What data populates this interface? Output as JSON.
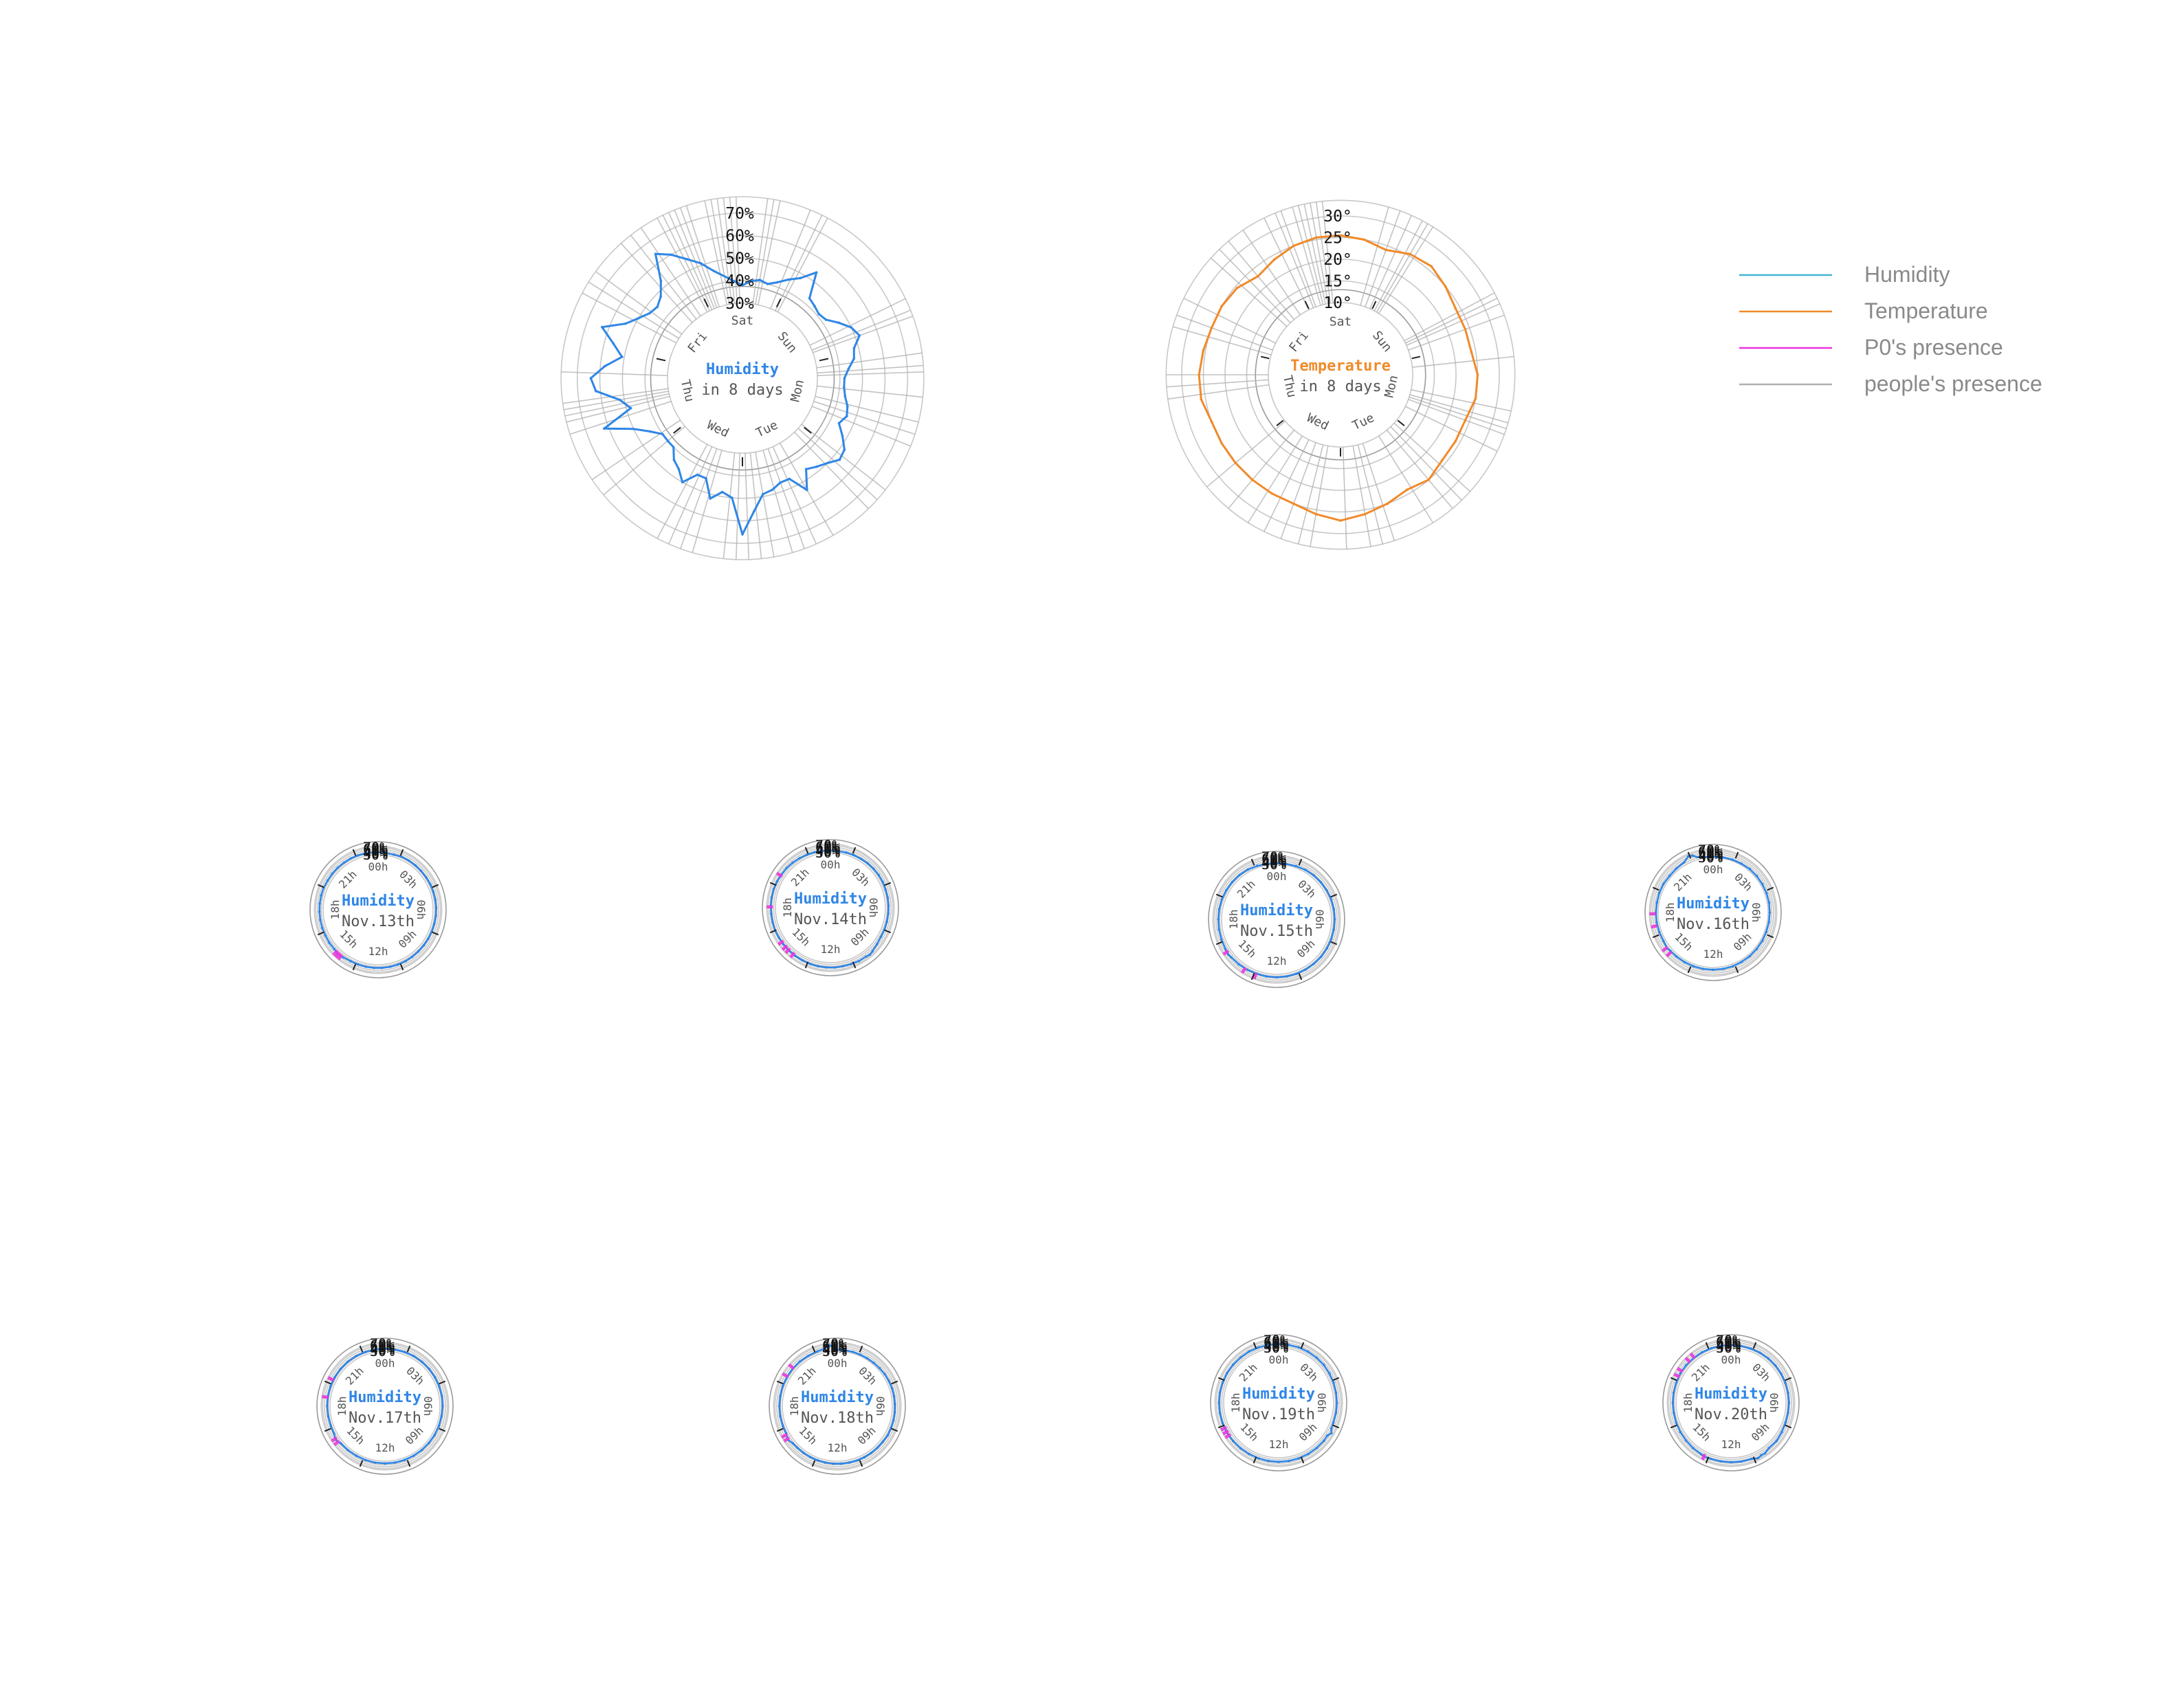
{
  "colors": {
    "humidity": "#2f86e6",
    "temperature": "#f08a2a",
    "p0_presence": "#ee33dd",
    "people_presence": "#b0b0b0",
    "ring": "#c8c8c8"
  },
  "legend": [
    {
      "label": "Humidity",
      "color": "#41b6d6"
    },
    {
      "label": "Temperature",
      "color": "#f08a2a"
    },
    {
      "label": "P0's presence",
      "color": "#ee33dd"
    },
    {
      "label": "people's presence",
      "color": "#b0b0b0"
    }
  ],
  "chart_data": [
    {
      "type": "radial-line",
      "series_color": "humidity",
      "center_title": "Humidity",
      "center_subtitle": "in 8 days",
      "ticks": [
        "30%",
        "40%",
        "50%",
        "60%",
        "70%"
      ],
      "rlim": [
        30,
        70
      ],
      "angle_labels": [
        "Sat",
        "Sun",
        "Mon",
        "Tue",
        "Wed",
        "Thu",
        "Fri"
      ],
      "theta": [
        0,
        5,
        10,
        15,
        20,
        25,
        30,
        35,
        40,
        45,
        50,
        55,
        60,
        65,
        70,
        75,
        80,
        85,
        90,
        95,
        100,
        105,
        110,
        115,
        120,
        125,
        130,
        135,
        140,
        145,
        150,
        155,
        160,
        165,
        170,
        175,
        180,
        185,
        190,
        195,
        200,
        205,
        210,
        215,
        220,
        225,
        230,
        235,
        240,
        245,
        250,
        255,
        260,
        265,
        270,
        275,
        280,
        285,
        290,
        295,
        300,
        305,
        310,
        315,
        320,
        325,
        330,
        335,
        340,
        345,
        355
      ],
      "values": [
        38,
        40,
        41,
        40,
        42,
        45,
        48,
        54,
        43,
        42,
        41,
        42,
        46,
        50,
        52,
        48,
        47,
        44,
        42,
        42,
        43,
        45,
        46,
        44,
        48,
        52,
        53,
        50,
        48,
        46,
        54,
        46,
        46,
        48,
        49,
        56,
        66,
        50,
        48,
        52,
        44,
        44,
        50,
        46,
        44,
        40,
        40,
        40,
        44,
        50,
        62,
        48,
        52,
        62,
        64,
        58,
        51,
        56,
        63,
        54,
        50,
        47,
        46,
        48,
        53,
        64,
        60,
        55,
        51,
        46,
        40
      ],
      "people_presence_theta": [
        -12,
        -10,
        -8,
        -6,
        -4,
        -2,
        8,
        10,
        12,
        22,
        26,
        28,
        64,
        68,
        70,
        82,
        86,
        88,
        96,
        104,
        108,
        112,
        128,
        132,
        136,
        150,
        156,
        160,
        164,
        170,
        174,
        178,
        182,
        186,
        196,
        200,
        204,
        208,
        230,
        236,
        252,
        256,
        258,
        260,
        262,
        272,
        298,
        302,
        306,
        318,
        322,
        326,
        332,
        334,
        336,
        338,
        340,
        342
      ],
      "p0_presence_theta": []
    },
    {
      "type": "radial-line",
      "series_color": "temperature",
      "center_title": "Temperature",
      "center_subtitle": "in 8 days",
      "ticks": [
        "10°",
        "15°",
        "20°",
        "25°",
        "30°"
      ],
      "rlim": [
        10,
        30
      ],
      "angle_labels": [
        "Sat",
        "Sun",
        "Mon",
        "Tue",
        "Wed",
        "Thu",
        "Fri"
      ],
      "theta": [
        0,
        10,
        20,
        30,
        40,
        50,
        60,
        70,
        80,
        90,
        100,
        110,
        120,
        130,
        140,
        150,
        160,
        170,
        180,
        190,
        200,
        210,
        220,
        230,
        240,
        250,
        260,
        270,
        280,
        290,
        300,
        310,
        320,
        330,
        340,
        350
      ],
      "values": [
        25.5,
        25,
        24,
        25.5,
        26,
        25,
        24,
        24,
        24,
        25,
        25,
        24,
        24,
        24,
        25,
        24,
        25,
        26,
        27,
        26,
        25,
        25,
        25,
        25,
        25,
        25,
        26,
        26,
        25.5,
        25,
        25,
        24.5,
        23,
        24,
        25,
        25.5
      ],
      "people_presence_theta": [
        -20,
        -16,
        -14,
        -12,
        -10,
        -8,
        -6,
        16,
        20,
        24,
        28,
        30,
        32,
        62,
        64,
        66,
        70,
        84,
        102,
        106,
        108,
        110,
        116,
        132,
        136,
        140,
        148,
        162,
        166,
        170,
        178,
        190,
        194,
        200,
        206,
        212,
        220,
        230,
        262,
        266,
        270,
        286,
        290,
        296,
        312,
        316,
        320,
        326,
        334,
        338
      ],
      "p0_presence_theta": []
    },
    {
      "type": "radial-line",
      "series_color": "humidity",
      "center_title": "Humidity",
      "center_subtitle": "Nov.13th",
      "ticks": [
        "30%",
        "40%",
        "50%",
        "60%",
        "70%"
      ],
      "rlim": [
        30,
        70
      ],
      "angle_labels": [
        "00h",
        "03h",
        "06h",
        "09h",
        "12h",
        "15h",
        "18h",
        "21h"
      ],
      "theta": [
        0,
        8,
        16,
        24,
        32,
        40,
        48,
        56,
        64,
        72,
        80,
        88,
        96,
        104,
        112,
        120,
        128,
        136,
        144,
        152,
        160,
        168,
        176,
        184,
        192,
        200,
        208,
        216,
        222,
        225,
        228,
        236,
        244,
        252,
        260,
        268,
        276,
        284,
        292,
        300,
        308,
        316,
        324,
        332,
        340,
        348,
        356
      ],
      "values": [
        43,
        42,
        42,
        46,
        46,
        46,
        46,
        46,
        47,
        47,
        47,
        47,
        47,
        46,
        46,
        46,
        46,
        46,
        47,
        48,
        48,
        48,
        48,
        48,
        48,
        48,
        48,
        51,
        58,
        52,
        51,
        51,
        50,
        50,
        50,
        50,
        50,
        50,
        50,
        48,
        48,
        48,
        47,
        47,
        46,
        45,
        43
      ],
      "people_presence_theta": [],
      "p0_presence_theta": [
        218,
        221,
        224
      ]
    },
    {
      "type": "radial-line",
      "series_color": "humidity",
      "center_title": "Humidity",
      "center_subtitle": "Nov.14th",
      "ticks": [
        "30%",
        "40%",
        "50%",
        "60%",
        "70%"
      ],
      "rlim": [
        30,
        70
      ],
      "angle_labels": [
        "00h",
        "03h",
        "06h",
        "09h",
        "12h",
        "15h",
        "18h",
        "21h"
      ],
      "theta": [
        0,
        8,
        16,
        24,
        32,
        40,
        48,
        56,
        64,
        72,
        80,
        88,
        96,
        104,
        112,
        120,
        128,
        136,
        140,
        144,
        152,
        160,
        168,
        176,
        184,
        192,
        200,
        208,
        216,
        224,
        232,
        240,
        248,
        256,
        264,
        272,
        280,
        288,
        296,
        304,
        312,
        320,
        328,
        336,
        344,
        352
      ],
      "values": [
        41,
        41,
        42,
        43,
        44,
        46,
        47,
        48,
        48,
        47,
        47,
        47,
        47,
        47,
        48,
        48,
        52,
        60,
        64,
        60,
        60,
        58,
        56,
        57,
        56,
        56,
        56,
        55,
        55,
        55,
        55,
        55,
        56,
        55,
        54,
        55,
        55,
        55,
        54,
        52,
        52,
        50,
        48,
        46,
        44,
        42
      ],
      "people_presence_theta": [],
      "p0_presence_theta": [
        218,
        224,
        228,
        234,
        270,
        302
      ]
    },
    {
      "type": "radial-line",
      "series_color": "humidity",
      "center_title": "Humidity",
      "center_subtitle": "Nov.15th",
      "ticks": [
        "30%",
        "40%",
        "50%",
        "60%",
        "70%"
      ],
      "rlim": [
        30,
        70
      ],
      "angle_labels": [
        "00h",
        "03h",
        "06h",
        "09h",
        "12h",
        "15h",
        "18h",
        "21h"
      ],
      "theta": [
        0,
        10,
        20,
        30,
        40,
        50,
        60,
        70,
        80,
        90,
        100,
        110,
        120,
        130,
        140,
        150,
        160,
        170,
        180,
        190,
        200,
        210,
        220,
        230,
        234,
        240,
        250,
        260,
        270,
        280,
        290,
        300,
        310,
        320,
        330,
        340,
        350
      ],
      "values": [
        37,
        37,
        39,
        42,
        44,
        45,
        46,
        47,
        47,
        47,
        47,
        47,
        47,
        47,
        46,
        46,
        46,
        46,
        46,
        46,
        46,
        48,
        50,
        52,
        56,
        52,
        50,
        49,
        48,
        48,
        48,
        47,
        46,
        45,
        43,
        40,
        37
      ],
      "people_presence_theta": [],
      "p0_presence_theta": [
        200,
        212,
        236
      ]
    },
    {
      "type": "radial-line",
      "series_color": "humidity",
      "center_title": "Humidity",
      "center_subtitle": "Nov.16th",
      "ticks": [
        "30%",
        "40%",
        "50%",
        "60%",
        "70%"
      ],
      "rlim": [
        30,
        70
      ],
      "angle_labels": [
        "00h",
        "03h",
        "06h",
        "09h",
        "12h",
        "15h",
        "18h",
        "21h"
      ],
      "theta": [
        0,
        10,
        20,
        30,
        40,
        50,
        60,
        70,
        80,
        90,
        100,
        110,
        120,
        130,
        140,
        150,
        160,
        170,
        180,
        190,
        200,
        210,
        220,
        228,
        232,
        240,
        250,
        260,
        270,
        280,
        290,
        300,
        310,
        320,
        330,
        336,
        340,
        344,
        350
      ],
      "values": [
        34,
        35,
        37,
        38,
        40,
        40,
        40,
        40,
        40,
        39,
        39,
        39,
        40,
        40,
        41,
        41,
        42,
        42,
        42,
        42,
        42,
        42,
        42,
        43,
        48,
        42,
        42,
        42,
        42,
        41,
        42,
        42,
        40,
        42,
        46,
        64,
        60,
        44,
        37
      ],
      "people_presence_theta": [],
      "p0_presence_theta": [
        226,
        232,
        256,
        268
      ]
    },
    {
      "type": "radial-line",
      "series_color": "humidity",
      "center_title": "Humidity",
      "center_subtitle": "Nov.17th",
      "ticks": [
        "30%",
        "40%",
        "50%",
        "60%",
        "70%"
      ],
      "rlim": [
        30,
        70
      ],
      "angle_labels": [
        "00h",
        "03h",
        "06h",
        "09h",
        "12h",
        "15h",
        "18h",
        "21h"
      ],
      "theta": [
        0,
        10,
        20,
        30,
        40,
        50,
        60,
        70,
        80,
        90,
        100,
        110,
        120,
        130,
        140,
        150,
        160,
        170,
        180,
        190,
        200,
        210,
        220,
        230,
        236,
        242,
        250,
        260,
        270,
        280,
        290,
        300,
        310,
        320,
        330,
        340,
        350
      ],
      "values": [
        43,
        43,
        44,
        45,
        45,
        45,
        45,
        45,
        45,
        44,
        43,
        43,
        43,
        42,
        42,
        42,
        42,
        42,
        42,
        42,
        42,
        42,
        43,
        45,
        56,
        45,
        44,
        44,
        45,
        46,
        46,
        46,
        46,
        46,
        45,
        44,
        43
      ],
      "people_presence_theta": [],
      "p0_presence_theta": [
        232,
        236,
        278,
        296
      ]
    },
    {
      "type": "radial-line",
      "series_color": "humidity",
      "center_title": "Humidity",
      "center_subtitle": "Nov.18th",
      "ticks": [
        "30%",
        "40%",
        "50%",
        "60%",
        "70%"
      ],
      "rlim": [
        30,
        70
      ],
      "angle_labels": [
        "00h",
        "03h",
        "06h",
        "09h",
        "12h",
        "15h",
        "18h",
        "21h"
      ],
      "theta": [
        0,
        4,
        8,
        16,
        24,
        32,
        40,
        48,
        56,
        64,
        72,
        80,
        88,
        96,
        104,
        112,
        120,
        128,
        136,
        144,
        152,
        160,
        168,
        176,
        184,
        192,
        200,
        208,
        216,
        224,
        230,
        236,
        242,
        250,
        260,
        270,
        280,
        290,
        300,
        310,
        320,
        330,
        340,
        348,
        352,
        356
      ],
      "values": [
        38,
        37,
        38,
        38,
        38,
        38,
        39,
        40,
        42,
        43,
        44,
        44,
        44,
        45,
        46,
        46,
        48,
        45,
        45,
        45,
        45,
        45,
        44,
        44,
        44,
        44,
        44,
        44,
        44,
        44,
        46,
        56,
        46,
        46,
        46,
        46,
        46,
        47,
        47,
        48,
        48,
        47,
        48,
        52,
        68,
        52
      ],
      "people_presence_theta": [],
      "p0_presence_theta": [
        236,
        240,
        300,
        310
      ]
    },
    {
      "type": "radial-line",
      "series_color": "humidity",
      "center_title": "Humidity",
      "center_subtitle": "Nov.19th",
      "ticks": [
        "30%",
        "40%",
        "50%",
        "60%",
        "70%"
      ],
      "rlim": [
        30,
        70
      ],
      "angle_labels": [
        "00h",
        "03h",
        "06h",
        "09h",
        "12h",
        "15h",
        "18h",
        "21h"
      ],
      "theta": [
        0,
        10,
        20,
        30,
        40,
        50,
        60,
        70,
        80,
        90,
        100,
        110,
        116,
        120,
        124,
        130,
        140,
        150,
        160,
        170,
        180,
        190,
        200,
        210,
        220,
        230,
        240,
        250,
        260,
        270,
        280,
        290,
        300,
        310,
        320,
        330,
        340,
        350
      ],
      "values": [
        50,
        50,
        51,
        51,
        51,
        51,
        50,
        49,
        48,
        48,
        48,
        48,
        50,
        62,
        50,
        52,
        52,
        52,
        52,
        52,
        52,
        52,
        52,
        52,
        53,
        54,
        56,
        55,
        55,
        55,
        55,
        54,
        54,
        53,
        52,
        52,
        51,
        50
      ],
      "people_presence_theta": [],
      "p0_presence_theta": [
        236,
        240,
        244
      ]
    },
    {
      "type": "radial-line",
      "series_color": "humidity",
      "center_title": "Humidity",
      "center_subtitle": "Nov.20th",
      "ticks": [
        "30%",
        "40%",
        "50%",
        "60%",
        "70%"
      ],
      "rlim": [
        30,
        70
      ],
      "angle_labels": [
        "00h",
        "03h",
        "06h",
        "09h",
        "12h",
        "15h",
        "18h",
        "21h"
      ],
      "theta": [
        0,
        10,
        20,
        30,
        40,
        50,
        60,
        70,
        80,
        90,
        100,
        110,
        120,
        130,
        140,
        146,
        150,
        154,
        160,
        170,
        180,
        190,
        200,
        206,
        210,
        220,
        230,
        240,
        250,
        260,
        270,
        280,
        290,
        300,
        310,
        320,
        330,
        340,
        350
      ],
      "values": [
        44,
        44,
        44,
        45,
        46,
        46,
        46,
        46,
        46,
        46,
        46,
        47,
        50,
        54,
        52,
        62,
        60,
        66,
        56,
        55,
        54,
        54,
        55,
        58,
        54,
        52,
        50,
        49,
        48,
        47,
        47,
        48,
        48,
        49,
        49,
        48,
        47,
        46,
        45
      ],
      "people_presence_theta": [],
      "p0_presence_theta": [
        206,
        296,
        302,
        314,
        320
      ]
    }
  ]
}
